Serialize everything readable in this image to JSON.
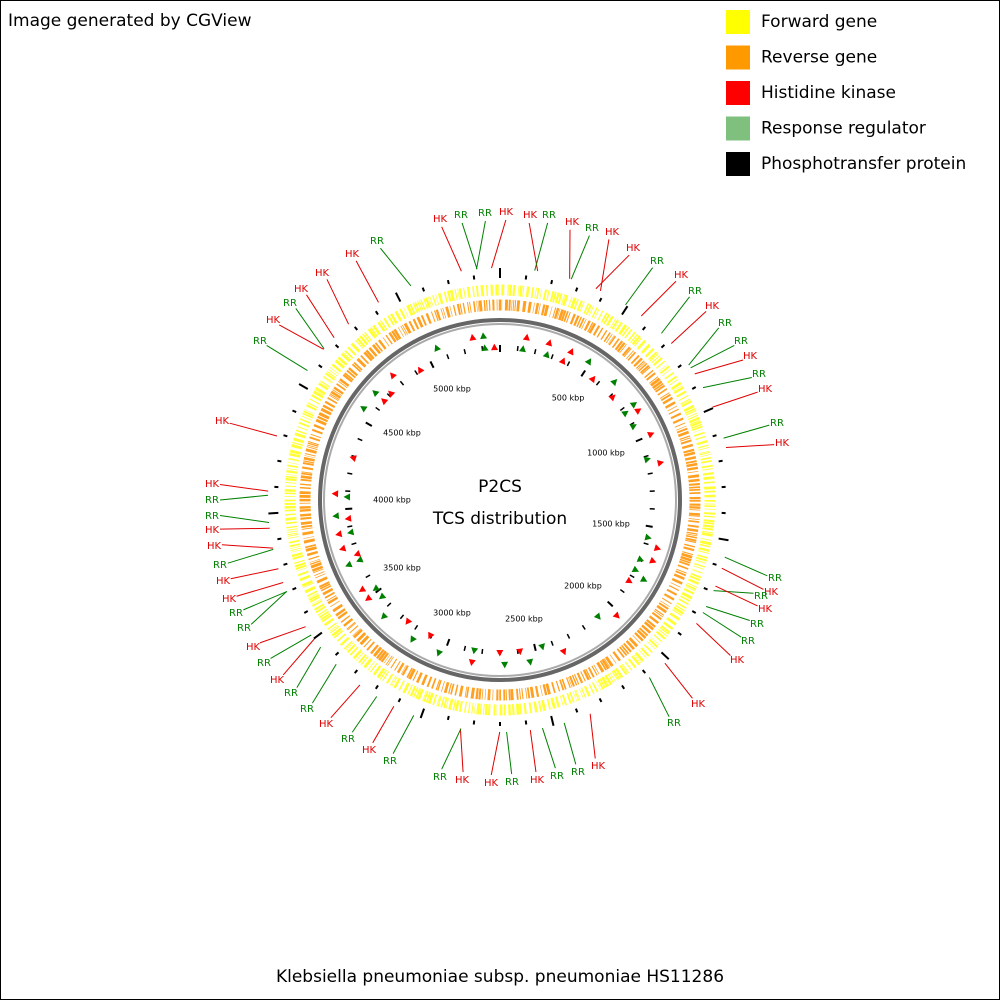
{
  "header": {
    "credit": "Image generated by CGView"
  },
  "legend": [
    {
      "label": "Forward gene",
      "color": "#ffff00"
    },
    {
      "label": "Reverse gene",
      "color": "#ff9900"
    },
    {
      "label": "Histidine kinase",
      "color": "#ff0000"
    },
    {
      "label": "Response regulator",
      "color": "#7fc07f"
    },
    {
      "label": "Phosphotransfer protein",
      "color": "#000000"
    }
  ],
  "center": {
    "title": "P2CS",
    "subtitle": "TCS distribution"
  },
  "ruler": [
    "500 kbp",
    "1000 kbp",
    "1500 kbp",
    "2000 kbp",
    "2500 kbp",
    "3000 kbp",
    "3500 kbp",
    "4000 kbp",
    "4500 kbp",
    "5000 kbp"
  ],
  "features": [
    {
      "text": "HK",
      "color": "#e00000"
    },
    {
      "text": "RR",
      "color": "#008000"
    },
    {
      "text": "RR",
      "color": "#008000"
    },
    {
      "text": "HK",
      "color": "#e00000"
    },
    {
      "text": "HK",
      "color": "#e00000"
    },
    {
      "text": "RR",
      "color": "#008000"
    },
    {
      "text": "HK",
      "color": "#e00000"
    },
    {
      "text": "RR",
      "color": "#008000"
    },
    {
      "text": "HK",
      "color": "#e00000"
    },
    {
      "text": "HK",
      "color": "#e00000"
    },
    {
      "text": "RR",
      "color": "#008000"
    },
    {
      "text": "HK",
      "color": "#e00000"
    },
    {
      "text": "RR",
      "color": "#008000"
    },
    {
      "text": "HK",
      "color": "#e00000"
    },
    {
      "text": "RR",
      "color": "#008000"
    },
    {
      "text": "RR",
      "color": "#008000"
    },
    {
      "text": "HK",
      "color": "#e00000"
    },
    {
      "text": "RR",
      "color": "#008000"
    },
    {
      "text": "HK",
      "color": "#e00000"
    },
    {
      "text": "RR",
      "color": "#008000"
    },
    {
      "text": "HK",
      "color": "#e00000"
    },
    {
      "text": "RR",
      "color": "#008000"
    },
    {
      "text": "HK",
      "color": "#e00000"
    },
    {
      "text": "RR",
      "color": "#008000"
    },
    {
      "text": "HK",
      "color": "#e00000"
    },
    {
      "text": "RR",
      "color": "#008000"
    },
    {
      "text": "RR",
      "color": "#008000"
    },
    {
      "text": "HK",
      "color": "#e00000"
    },
    {
      "text": "HK",
      "color": "#e00000"
    },
    {
      "text": "RR",
      "color": "#008000"
    },
    {
      "text": "HK",
      "color": "#e00000"
    },
    {
      "text": "RR",
      "color": "#008000"
    },
    {
      "text": "RR",
      "color": "#008000"
    },
    {
      "text": "HK",
      "color": "#e00000"
    },
    {
      "text": "RR",
      "color": "#008000"
    },
    {
      "text": "HK",
      "color": "#e00000"
    },
    {
      "text": "HK",
      "color": "#e00000"
    },
    {
      "text": "RR",
      "color": "#008000"
    },
    {
      "text": "RR",
      "color": "#008000"
    },
    {
      "text": "HK",
      "color": "#e00000"
    },
    {
      "text": "RR",
      "color": "#008000"
    },
    {
      "text": "HK",
      "color": "#e00000"
    },
    {
      "text": "RR",
      "color": "#008000"
    },
    {
      "text": "RR",
      "color": "#008000"
    },
    {
      "text": "HK",
      "color": "#e00000"
    },
    {
      "text": "RR",
      "color": "#008000"
    },
    {
      "text": "HK",
      "color": "#e00000"
    },
    {
      "text": "RR",
      "color": "#008000"
    },
    {
      "text": "RR",
      "color": "#008000"
    },
    {
      "text": "HK",
      "color": "#e00000"
    },
    {
      "text": "HK",
      "color": "#e00000"
    },
    {
      "text": "RR",
      "color": "#008000"
    },
    {
      "text": "HK",
      "color": "#e00000"
    },
    {
      "text": "HK",
      "color": "#e00000"
    },
    {
      "text": "RR",
      "color": "#008000"
    },
    {
      "text": "RR",
      "color": "#008000"
    },
    {
      "text": "HK",
      "color": "#e00000"
    },
    {
      "text": "HK",
      "color": "#e00000"
    },
    {
      "text": "RR",
      "color": "#008000"
    },
    {
      "text": "HK",
      "color": "#e00000"
    },
    {
      "text": "RR",
      "color": "#008000"
    },
    {
      "text": "HK",
      "color": "#e00000"
    },
    {
      "text": "HK",
      "color": "#e00000"
    },
    {
      "text": "HK",
      "color": "#e00000"
    },
    {
      "text": "RR",
      "color": "#008000"
    }
  ],
  "footer": {
    "organism": "Klebsiella pneumoniae subsp. pneumoniae HS11286"
  }
}
